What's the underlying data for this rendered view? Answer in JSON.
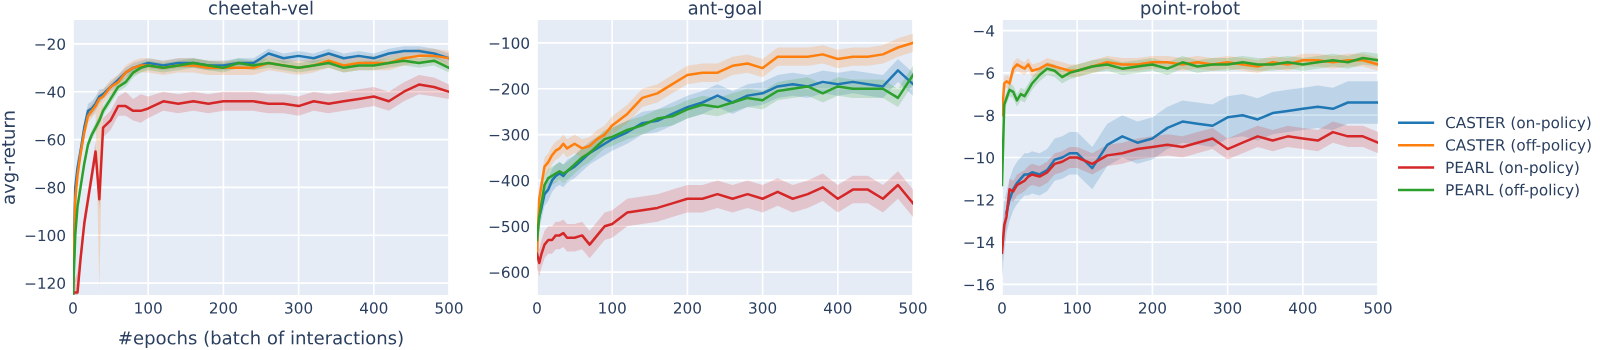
{
  "chart_data": [
    {
      "type": "line",
      "title": "cheetah-vel",
      "xlabel": "#epochs (batch of interactions)",
      "ylabel": "avg-return",
      "xlim": [
        0,
        500
      ],
      "xticks": [
        0,
        100,
        200,
        300,
        400,
        500
      ],
      "ylim": [
        -125,
        -10
      ],
      "yticks": [
        {
          "value": -120,
          "label": "−120"
        },
        {
          "value": -100,
          "label": "−100"
        },
        {
          "value": -80,
          "label": "−80"
        },
        {
          "value": -60,
          "label": "−60"
        },
        {
          "value": -40,
          "label": "−40"
        },
        {
          "value": -20,
          "label": "−20"
        }
      ],
      "grid": true,
      "legend": false,
      "marker": "none",
      "line_style": "solid",
      "x": [
        0,
        3,
        6,
        10,
        15,
        20,
        25,
        30,
        35,
        40,
        50,
        60,
        70,
        80,
        90,
        100,
        120,
        140,
        160,
        180,
        200,
        220,
        240,
        260,
        280,
        300,
        320,
        340,
        360,
        380,
        400,
        420,
        440,
        460,
        480,
        500
      ],
      "series": [
        {
          "color": "#1f77b4",
          "values": [
            -125,
            -80,
            -72,
            -65,
            -55,
            -48,
            -47,
            -45,
            -42,
            -41,
            -38,
            -35,
            -32,
            -30,
            -29,
            -28,
            -29,
            -28,
            -28,
            -29,
            -29,
            -28,
            -28,
            -24,
            -26,
            -25,
            -26,
            -24,
            -26,
            -25,
            -26,
            -24,
            -23,
            -23,
            -24,
            -26
          ],
          "lower": [
            -125,
            -84,
            -76,
            -68,
            -58,
            -51,
            -50,
            -48,
            -45,
            -43,
            -40,
            -37,
            -34,
            -32,
            -31,
            -30,
            -31,
            -30,
            -30,
            -31,
            -31,
            -30,
            -30,
            -26,
            -28,
            -27,
            -28,
            -26,
            -28,
            -27,
            -28,
            -26,
            -25,
            -25,
            -26,
            -28
          ],
          "upper": [
            -115,
            -76,
            -68,
            -62,
            -52,
            -45,
            -44,
            -42,
            -39,
            -39,
            -36,
            -33,
            -30,
            -28,
            -27,
            -26,
            -27,
            -26,
            -26,
            -27,
            -27,
            -26,
            -26,
            -22,
            -24,
            -23,
            -24,
            -22,
            -24,
            -23,
            -24,
            -22,
            -21,
            -21,
            -22,
            -24
          ]
        },
        {
          "color": "#ff7f0e",
          "values": [
            -125,
            -85,
            -75,
            -66,
            -57,
            -50,
            -48,
            -46,
            -43,
            -42,
            -38,
            -36,
            -32,
            -30,
            -29,
            -29,
            -30,
            -29,
            -29,
            -30,
            -30,
            -30,
            -30,
            -28,
            -29,
            -30,
            -29,
            -27,
            -29,
            -28,
            -28,
            -28,
            -26,
            -25,
            -25,
            -26
          ],
          "lower": [
            -125,
            -88,
            -78,
            -69,
            -60,
            -53,
            -51,
            -49,
            -123,
            -45,
            -41,
            -39,
            -35,
            -33,
            -32,
            -32,
            -33,
            -32,
            -32,
            -33,
            -33,
            -33,
            -33,
            -31,
            -32,
            -33,
            -32,
            -30,
            -32,
            -31,
            -31,
            -31,
            -29,
            -28,
            -28,
            -29
          ],
          "upper": [
            -115,
            -82,
            -72,
            -63,
            -54,
            -47,
            -45,
            -43,
            -40,
            -39,
            -35,
            -33,
            -29,
            -27,
            -26,
            -26,
            -27,
            -26,
            -26,
            -27,
            -27,
            -27,
            -27,
            -25,
            -26,
            -27,
            -26,
            -24,
            -26,
            -25,
            -25,
            -25,
            -23,
            -22,
            -22,
            -23
          ]
        },
        {
          "color": "#d62728",
          "values": [
            -124,
            -124,
            -124,
            -110,
            -95,
            -85,
            -75,
            -65,
            -85,
            -55,
            -52,
            -46,
            -46,
            -48,
            -48,
            -47,
            -44,
            -45,
            -44,
            -45,
            -44,
            -44,
            -44,
            -45,
            -45,
            -46,
            -44,
            -45,
            -44,
            -43,
            -42,
            -44,
            -40,
            -37,
            -38,
            -40
          ],
          "lower": [
            -125,
            -125,
            -125,
            -114,
            -99,
            -89,
            -79,
            -69,
            -89,
            -59,
            -56,
            -50,
            -50,
            -52,
            -53,
            -51,
            -48,
            -49,
            -48,
            -49,
            -48,
            -48,
            -48,
            -49,
            -49,
            -50,
            -48,
            -49,
            -48,
            -47,
            -46,
            -48,
            -44,
            -41,
            -42,
            -43
          ],
          "upper": [
            -120,
            -118,
            -115,
            -106,
            -91,
            -81,
            -71,
            -61,
            -81,
            -51,
            -48,
            -42,
            -40,
            -43,
            -41,
            -42,
            -40,
            -41,
            -40,
            -41,
            -40,
            -40,
            -40,
            -41,
            -41,
            -42,
            -40,
            -41,
            -40,
            -39,
            -38,
            -40,
            -36,
            -33,
            -34,
            -37
          ]
        },
        {
          "color": "#2ca02c",
          "values": [
            -125,
            -100,
            -88,
            -80,
            -70,
            -62,
            -58,
            -55,
            -52,
            -48,
            -43,
            -38,
            -36,
            -32,
            -30,
            -29,
            -30,
            -29,
            -28,
            -29,
            -30,
            -28,
            -29,
            -28,
            -29,
            -30,
            -29,
            -28,
            -30,
            -29,
            -29,
            -28,
            -27,
            -28,
            -27,
            -30
          ],
          "lower": [
            -125,
            -102,
            -90,
            -82,
            -72,
            -64,
            -60,
            -57,
            -54,
            -50,
            -45,
            -40,
            -38,
            -34,
            -32,
            -31,
            -32,
            -31,
            -30,
            -31,
            -32,
            -30,
            -31,
            -30,
            -31,
            -32,
            -31,
            -30,
            -32,
            -31,
            -31,
            -30,
            -29,
            -30,
            -29,
            -32
          ],
          "upper": [
            -115,
            -98,
            -86,
            -78,
            -68,
            -60,
            -56,
            -53,
            -50,
            -46,
            -41,
            -36,
            -34,
            -30,
            -28,
            -27,
            -28,
            -27,
            -26,
            -27,
            -28,
            -26,
            -27,
            -26,
            -27,
            -28,
            -27,
            -26,
            -28,
            -27,
            -27,
            -26,
            -25,
            -26,
            -25,
            -28
          ]
        }
      ]
    },
    {
      "type": "line",
      "title": "ant-goal",
      "xlim": [
        0,
        500
      ],
      "xticks": [
        0,
        100,
        200,
        300,
        400,
        500
      ],
      "ylim": [
        -650,
        -50
      ],
      "yticks": [
        {
          "value": -600,
          "label": "−600"
        },
        {
          "value": -500,
          "label": "−500"
        },
        {
          "value": -400,
          "label": "−400"
        },
        {
          "value": -300,
          "label": "−300"
        },
        {
          "value": -200,
          "label": "−200"
        },
        {
          "value": -100,
          "label": "−100"
        }
      ],
      "grid": true,
      "legend": false,
      "marker": "none",
      "line_style": "solid",
      "x": [
        0,
        3,
        6,
        10,
        15,
        20,
        25,
        30,
        35,
        40,
        50,
        60,
        70,
        80,
        90,
        100,
        120,
        140,
        160,
        180,
        200,
        220,
        240,
        260,
        280,
        300,
        320,
        340,
        360,
        380,
        400,
        420,
        440,
        460,
        480,
        500
      ],
      "series": [
        {
          "color": "#1f77b4",
          "values": [
            null,
            -480,
            -460,
            -430,
            -420,
            -400,
            -390,
            -385,
            -390,
            -380,
            -370,
            -355,
            -340,
            -330,
            -320,
            -310,
            -295,
            -275,
            -270,
            -255,
            -240,
            -230,
            -215,
            -230,
            -215,
            -210,
            -195,
            -190,
            -195,
            -185,
            -190,
            -185,
            -190,
            -195,
            -160,
            -190
          ],
          "lower": [
            -585,
            -505,
            -485,
            -455,
            -445,
            -425,
            -415,
            -410,
            -415,
            -405,
            -395,
            -380,
            -365,
            -355,
            -345,
            -335,
            -320,
            -300,
            -295,
            -280,
            -265,
            -255,
            -240,
            -255,
            -240,
            -235,
            -220,
            -215,
            -220,
            -210,
            -215,
            -210,
            -215,
            -220,
            -185,
            -215
          ],
          "upper": [
            -535,
            -455,
            -435,
            -405,
            -395,
            -375,
            -365,
            -360,
            -365,
            -355,
            -345,
            -330,
            -315,
            -305,
            -295,
            -285,
            -270,
            -250,
            -245,
            -230,
            -215,
            -205,
            -190,
            -205,
            -190,
            -185,
            -170,
            -165,
            -170,
            -160,
            -165,
            -160,
            -165,
            -170,
            -135,
            -165
          ]
        },
        {
          "color": "#ff7f0e",
          "values": [
            -560,
            -440,
            -410,
            -370,
            -360,
            -345,
            -335,
            -330,
            -320,
            -330,
            -320,
            -330,
            -325,
            -310,
            -300,
            -280,
            -255,
            -220,
            -210,
            -190,
            -170,
            -165,
            -165,
            -150,
            -145,
            -155,
            -130,
            -130,
            -130,
            -125,
            -135,
            -130,
            -130,
            -125,
            -110,
            -100
          ],
          "lower": [
            -575,
            -460,
            -430,
            -390,
            -380,
            -365,
            -355,
            -350,
            -340,
            -350,
            -340,
            -350,
            -345,
            -330,
            -320,
            -300,
            -275,
            -240,
            -230,
            -210,
            -190,
            -185,
            -185,
            -170,
            -165,
            -175,
            -150,
            -150,
            -150,
            -145,
            -155,
            -150,
            -150,
            -145,
            -130,
            -120
          ],
          "upper": [
            -545,
            -420,
            -390,
            -350,
            -340,
            -325,
            -315,
            -310,
            -300,
            -310,
            -300,
            -310,
            -305,
            -290,
            -280,
            -260,
            -235,
            -200,
            -190,
            -170,
            -150,
            -145,
            -145,
            -130,
            -125,
            -135,
            -110,
            -110,
            -110,
            -105,
            -115,
            -110,
            -110,
            -105,
            -90,
            -80
          ]
        },
        {
          "color": "#d62728",
          "values": [
            -560,
            -580,
            -560,
            -540,
            -530,
            -530,
            -520,
            -520,
            -515,
            -525,
            -525,
            -520,
            -540,
            -520,
            -500,
            -495,
            -470,
            -465,
            -460,
            -450,
            -440,
            -440,
            -430,
            -440,
            -430,
            -440,
            -425,
            -440,
            -430,
            -415,
            -440,
            -420,
            -420,
            -440,
            -410,
            -450
          ],
          "lower": [
            -590,
            -610,
            -590,
            -570,
            -560,
            -560,
            -550,
            -550,
            -545,
            -555,
            -555,
            -550,
            -570,
            -550,
            -530,
            -525,
            -500,
            -495,
            -490,
            -480,
            -470,
            -470,
            -460,
            -470,
            -460,
            -470,
            -455,
            -470,
            -460,
            -445,
            -470,
            -450,
            -450,
            -470,
            -440,
            -480
          ],
          "upper": [
            -530,
            -550,
            -530,
            -510,
            -500,
            -500,
            -490,
            -490,
            -485,
            -495,
            -495,
            -490,
            -510,
            -490,
            -470,
            -465,
            -440,
            -435,
            -430,
            -420,
            -410,
            -410,
            -400,
            -410,
            -400,
            -410,
            -395,
            -410,
            -400,
            -385,
            -410,
            -390,
            -390,
            -410,
            -380,
            -420
          ]
        },
        {
          "color": "#2ca02c",
          "values": [
            -530,
            -480,
            -450,
            -410,
            -395,
            -390,
            -385,
            -380,
            -385,
            -380,
            -365,
            -350,
            -340,
            -325,
            -310,
            -305,
            -290,
            -280,
            -265,
            -260,
            -245,
            -235,
            -240,
            -230,
            -220,
            -225,
            -205,
            -200,
            -195,
            -210,
            -195,
            -200,
            -200,
            -200,
            -220,
            -170
          ],
          "lower": [
            -550,
            -500,
            -470,
            -430,
            -415,
            -410,
            -405,
            -400,
            -405,
            -400,
            -385,
            -370,
            -360,
            -345,
            -330,
            -325,
            -310,
            -300,
            -285,
            -280,
            -265,
            -255,
            -260,
            -250,
            -240,
            -245,
            -225,
            -220,
            -215,
            -230,
            -215,
            -220,
            -220,
            -220,
            -240,
            -190
          ],
          "upper": [
            -510,
            -460,
            -430,
            -390,
            -375,
            -370,
            -365,
            -360,
            -365,
            -360,
            -345,
            -330,
            -320,
            -305,
            -290,
            -285,
            -270,
            -260,
            -245,
            -240,
            -225,
            -215,
            -220,
            -210,
            -200,
            -205,
            -185,
            -180,
            -175,
            -190,
            -175,
            -180,
            -180,
            -180,
            -200,
            -150
          ]
        }
      ]
    },
    {
      "type": "line",
      "title": "point-robot",
      "xlim": [
        0,
        500
      ],
      "xticks": [
        0,
        100,
        200,
        300,
        400,
        500
      ],
      "ylim": [
        -16.5,
        -3.5
      ],
      "yticks": [
        {
          "value": -16,
          "label": "−16"
        },
        {
          "value": -14,
          "label": "−14"
        },
        {
          "value": -12,
          "label": "−12"
        },
        {
          "value": -10,
          "label": "−10"
        },
        {
          "value": -8,
          "label": "−8"
        },
        {
          "value": -6,
          "label": "−6"
        },
        {
          "value": -4,
          "label": "−4"
        }
      ],
      "grid": true,
      "legend": "right",
      "marker": "none",
      "line_style": "solid",
      "x": [
        0,
        3,
        6,
        10,
        15,
        20,
        25,
        30,
        35,
        40,
        50,
        60,
        70,
        80,
        90,
        100,
        120,
        140,
        160,
        180,
        200,
        220,
        240,
        260,
        280,
        300,
        320,
        340,
        360,
        380,
        400,
        420,
        440,
        460,
        480,
        500
      ],
      "series": [
        {
          "name": "CASTER (on-policy)",
          "color": "#1f77b4",
          "values": [
            null,
            null,
            -12.6,
            -12,
            -11.5,
            -11.2,
            -11.0,
            -10.8,
            -10.8,
            -10.7,
            -10.8,
            -10.6,
            -10.1,
            -10.0,
            -9.8,
            -9.8,
            -10.5,
            -9.4,
            -9.0,
            -9.3,
            -9.1,
            -8.6,
            -8.3,
            -8.4,
            -8.5,
            -8.1,
            -8.0,
            -8.2,
            -7.9,
            -7.8,
            -7.7,
            -7.6,
            -7.7,
            -7.4,
            -7.4,
            -7.4
          ],
          "lower": [
            -15.7,
            -14.5,
            -13.6,
            -13.0,
            -12.5,
            -12.2,
            -12.0,
            -11.8,
            -11.8,
            -11.7,
            -11.8,
            -11.6,
            -11.1,
            -11.0,
            -10.8,
            -10.8,
            -11.5,
            -10.4,
            -10.0,
            -10.3,
            -10.1,
            -9.6,
            -9.3,
            -9.4,
            -9.5,
            -9.1,
            -9.0,
            -9.2,
            -8.9,
            -8.8,
            -8.7,
            -8.6,
            -8.7,
            -8.4,
            -8.4,
            -8.4
          ],
          "upper": [
            -13.3,
            -12.1,
            -11.6,
            -11.0,
            -10.5,
            -10.2,
            -10.0,
            -9.8,
            -9.8,
            -9.7,
            -9.8,
            -9.6,
            -9.1,
            -9.0,
            -8.8,
            -8.8,
            -9.5,
            -8.4,
            -8.0,
            -8.3,
            -8.1,
            -7.6,
            -7.3,
            -7.4,
            -7.5,
            -7.1,
            -7.0,
            -7.2,
            -6.9,
            -6.8,
            -6.7,
            -6.6,
            -6.7,
            -6.4,
            -6.4,
            -6.4
          ]
        },
        {
          "name": "CASTER (off-policy)",
          "color": "#ff7f0e",
          "values": [
            -8,
            -6.5,
            -6.4,
            -6.5,
            -5.8,
            -5.6,
            -5.7,
            -5.8,
            -5.6,
            -5.9,
            -5.8,
            -5.6,
            -5.7,
            -5.8,
            -5.9,
            -5.9,
            -5.7,
            -5.5,
            -5.6,
            -5.6,
            -5.5,
            -5.5,
            -5.6,
            -5.5,
            -5.6,
            -5.5,
            -5.6,
            -5.7,
            -5.5,
            -5.6,
            -5.4,
            -5.4,
            -5.5,
            -5.4,
            -5.4,
            -5.6
          ],
          "lower": [
            -8.3,
            -6.8,
            -6.7,
            -6.8,
            -6.1,
            -5.9,
            -6.0,
            -6.1,
            -5.9,
            -6.2,
            -6.1,
            -5.9,
            -6.0,
            -6.1,
            -6.2,
            -6.2,
            -6.0,
            -5.8,
            -5.9,
            -5.9,
            -5.8,
            -5.8,
            -5.9,
            -5.8,
            -5.9,
            -5.8,
            -5.9,
            -6.0,
            -5.8,
            -5.9,
            -5.7,
            -5.7,
            -5.8,
            -5.7,
            -5.7,
            -5.9
          ],
          "upper": [
            -7.7,
            -6.2,
            -6.1,
            -6.2,
            -5.5,
            -5.3,
            -5.4,
            -5.5,
            -5.3,
            -5.6,
            -5.5,
            -5.3,
            -5.4,
            -5.5,
            -5.6,
            -5.6,
            -5.4,
            -5.2,
            -5.3,
            -5.3,
            -5.2,
            -5.2,
            -5.3,
            -5.2,
            -5.3,
            -5.2,
            -5.3,
            -5.4,
            -5.2,
            -5.3,
            -5.1,
            -5.1,
            -5.2,
            -5.1,
            -5.1,
            -5.3
          ]
        },
        {
          "name": "PEARL (on-policy)",
          "color": "#d62728",
          "values": [
            -14.5,
            -13.2,
            -12.8,
            -11.5,
            -11.6,
            -11.3,
            -11.2,
            -11.1,
            -10.9,
            -10.8,
            -10.9,
            -10.7,
            -10.3,
            -10.2,
            -10.0,
            -10.0,
            -10.3,
            -9.9,
            -9.8,
            -9.6,
            -9.5,
            -9.4,
            -9.5,
            -9.3,
            -9.1,
            -9.6,
            -9.3,
            -9.0,
            -9.2,
            -9.0,
            -9.1,
            -9.2,
            -8.8,
            -9.0,
            -9.0,
            -9.3
          ],
          "lower": [
            -15.0,
            -13.7,
            -13.3,
            -12.0,
            -12.1,
            -11.8,
            -11.7,
            -11.6,
            -11.4,
            -11.3,
            -11.4,
            -11.2,
            -10.8,
            -10.7,
            -10.5,
            -10.5,
            -10.8,
            -10.4,
            -10.3,
            -10.1,
            -10.0,
            -9.9,
            -10.0,
            -9.8,
            -9.6,
            -10.1,
            -9.8,
            -9.5,
            -9.7,
            -9.5,
            -9.6,
            -9.7,
            -9.3,
            -9.5,
            -9.5,
            -9.8
          ],
          "upper": [
            -14.0,
            -12.7,
            -12.3,
            -11.0,
            -11.1,
            -10.8,
            -10.7,
            -10.6,
            -10.4,
            -10.3,
            -10.4,
            -10.2,
            -9.8,
            -9.7,
            -9.5,
            -9.5,
            -9.8,
            -9.4,
            -9.3,
            -9.1,
            -9.0,
            -8.9,
            -9.0,
            -8.8,
            -8.6,
            -9.1,
            -8.8,
            -8.5,
            -8.7,
            -8.5,
            -8.6,
            -8.7,
            -8.3,
            -8.5,
            -8.5,
            -8.8
          ]
        },
        {
          "name": "PEARL (off-policy)",
          "color": "#2ca02c",
          "values": [
            -11.3,
            -7.5,
            -7.2,
            -6.8,
            -6.9,
            -7.3,
            -7.0,
            -7.1,
            -6.8,
            -6.5,
            -6.1,
            -5.8,
            -5.9,
            -6.2,
            -6.0,
            -5.9,
            -5.7,
            -5.6,
            -5.8,
            -5.7,
            -5.6,
            -5.8,
            -5.5,
            -5.7,
            -5.6,
            -5.6,
            -5.5,
            -5.6,
            -5.6,
            -5.5,
            -5.6,
            -5.5,
            -5.4,
            -5.5,
            -5.3,
            -5.4
          ],
          "lower": [
            -11.6,
            -7.8,
            -7.5,
            -7.1,
            -7.2,
            -7.6,
            -7.3,
            -7.4,
            -7.1,
            -6.8,
            -6.4,
            -6.1,
            -6.2,
            -6.5,
            -6.3,
            -6.2,
            -6.0,
            -5.9,
            -6.1,
            -6.0,
            -5.9,
            -6.1,
            -5.8,
            -6.0,
            -5.9,
            -5.9,
            -5.8,
            -5.9,
            -5.9,
            -5.8,
            -5.9,
            -5.8,
            -5.7,
            -5.8,
            -5.6,
            -5.7
          ],
          "upper": [
            -11.0,
            -7.2,
            -6.9,
            -6.5,
            -6.6,
            -7.0,
            -6.7,
            -6.8,
            -6.5,
            -6.2,
            -5.8,
            -5.5,
            -5.6,
            -5.9,
            -5.7,
            -5.6,
            -5.4,
            -5.3,
            -5.5,
            -5.4,
            -5.3,
            -5.5,
            -5.2,
            -5.4,
            -5.3,
            -5.3,
            -5.2,
            -5.3,
            -5.3,
            -5.2,
            -5.3,
            -5.2,
            -5.1,
            -5.2,
            -5.0,
            -5.1
          ]
        }
      ]
    }
  ]
}
